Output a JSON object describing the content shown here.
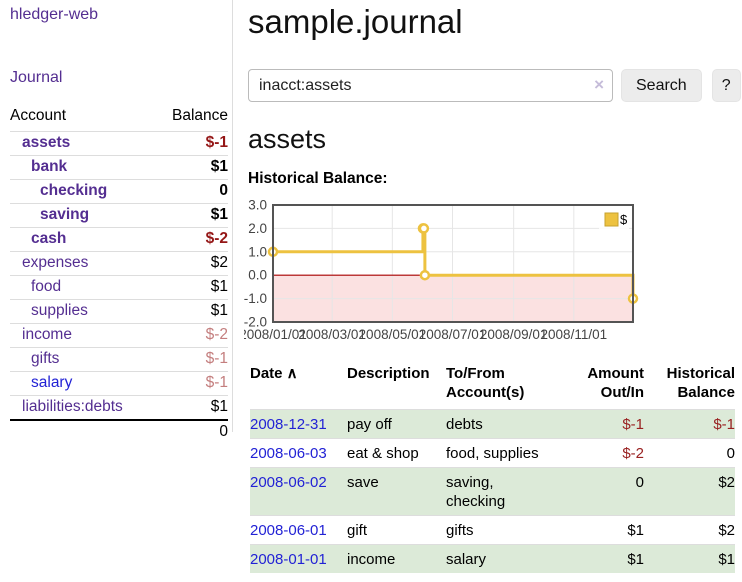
{
  "app": {
    "brand": "hledger-web",
    "nav": {
      "journal": "Journal"
    }
  },
  "sidebar": {
    "columns": {
      "account": "Account",
      "balance": "Balance"
    },
    "accounts": [
      {
        "name": "assets",
        "indent": 0,
        "bold": true,
        "neg": true,
        "balance": "$-1"
      },
      {
        "name": "bank",
        "indent": 1,
        "bold": true,
        "neg": false,
        "balance": "$1"
      },
      {
        "name": "checking",
        "indent": 2,
        "bold": true,
        "neg": false,
        "balance": "0"
      },
      {
        "name": "saving",
        "indent": 2,
        "bold": true,
        "neg": false,
        "balance": "$1"
      },
      {
        "name": "cash",
        "indent": 1,
        "bold": true,
        "neg": true,
        "balance": "$-2"
      },
      {
        "name": "expenses",
        "indent": 0,
        "bold": false,
        "neg": false,
        "balance": "$2"
      },
      {
        "name": "food",
        "indent": 1,
        "bold": false,
        "neg": false,
        "balance": "$1"
      },
      {
        "name": "supplies",
        "indent": 1,
        "bold": false,
        "neg": false,
        "balance": "$1"
      },
      {
        "name": "income",
        "indent": 0,
        "bold": false,
        "neg": true,
        "balance": "$-2"
      },
      {
        "name": "gifts",
        "indent": 1,
        "bold": false,
        "neg": true,
        "balance": "$-1"
      },
      {
        "name": "salary",
        "indent": 1,
        "bold": false,
        "neg": true,
        "blue": true,
        "balance": "$-1"
      },
      {
        "name": "liabilities:debts",
        "indent": 0,
        "bold": false,
        "neg": false,
        "balance": "$1"
      }
    ],
    "total": "0"
  },
  "header": {
    "title": "sample.journal"
  },
  "search": {
    "value": "inacct:assets",
    "clear_icon": "×",
    "button_label": "Search",
    "help_label": "?"
  },
  "account_page": {
    "title": "assets",
    "chart_label": "Historical Balance:"
  },
  "chart_data": {
    "type": "line",
    "step": true,
    "title": "Historical Balance",
    "x_range": [
      "2008-01-01",
      "2008-12-31"
    ],
    "ylim": [
      -2,
      3
    ],
    "y_ticks": [
      3,
      2,
      1,
      0,
      -1,
      -2
    ],
    "x_ticks": [
      "2008/01/01",
      "2008/03/01",
      "2008/05/01",
      "2008/07/01",
      "2008/09/01",
      "2008/11/01"
    ],
    "grid": true,
    "legend_position": "top-right",
    "series": [
      {
        "name": "$",
        "color": "#edc240",
        "x": [
          "2008-01-01",
          "2008-06-01",
          "2008-06-02",
          "2008-06-03",
          "2008-12-31"
        ],
        "values": [
          1,
          2,
          2,
          0,
          -1
        ]
      }
    ],
    "negative_region_fill": "#fbe1e1",
    "zero_line_color": "#aa0000"
  },
  "register": {
    "sort_arrow": "∧",
    "columns": [
      {
        "key": "date",
        "label": "Date",
        "sorted": true,
        "sortable": true
      },
      {
        "key": "description",
        "label": "Description"
      },
      {
        "key": "accounts",
        "label": "To/From Account(s)"
      },
      {
        "key": "amount",
        "label": "Amount Out/In",
        "align": "right"
      },
      {
        "key": "balance",
        "label": "Historical Balance",
        "align": "right"
      }
    ],
    "rows": [
      {
        "date": "2008-12-31",
        "description": "pay off",
        "accounts": "debts",
        "amount": "$-1",
        "amount_neg": true,
        "balance": "$-1",
        "balance_neg": true
      },
      {
        "date": "2008-06-03",
        "description": "eat & shop",
        "accounts": "food, supplies",
        "amount": "$-2",
        "amount_neg": true,
        "balance": "0",
        "balance_neg": false
      },
      {
        "date": "2008-06-02",
        "description": "save",
        "accounts": "saving, checking",
        "amount": "0",
        "amount_neg": false,
        "balance": "$2",
        "balance_neg": false
      },
      {
        "date": "2008-06-01",
        "description": "gift",
        "accounts": "gifts",
        "amount": "$1",
        "amount_neg": false,
        "balance": "$2",
        "balance_neg": false
      },
      {
        "date": "2008-01-01",
        "description": "income",
        "accounts": "salary",
        "amount": "$1",
        "amount_neg": false,
        "balance": "$1",
        "balance_neg": false
      }
    ]
  },
  "colors": {
    "link_purple": "#542e91",
    "link_blue": "#2222d5",
    "negative_dark": "#941616",
    "negative_light": "#c47e7e",
    "row_stripe_green": "#dcead8",
    "chart_series_gold": "#edc240",
    "chart_negative_pink": "#fbe1e1",
    "chart_zero_line": "#aa0000",
    "chart_border": "#545454"
  }
}
